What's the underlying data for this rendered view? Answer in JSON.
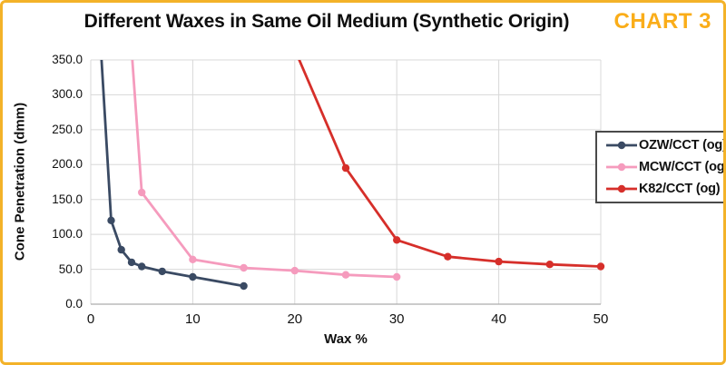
{
  "header": {
    "title": "Different Waxes in Same Oil Medium (Synthetic Origin)",
    "badge": "CHART 3",
    "badge_color": "#FAAD19",
    "frame_border_color": "#F3B229"
  },
  "chart_data": {
    "type": "line",
    "title": "Different Waxes in Same Oil Medium (Synthetic Origin)",
    "xlabel": "Wax %",
    "ylabel": "Cone Penetration (dmm)",
    "xlim": [
      0,
      50
    ],
    "ylim": [
      0,
      350
    ],
    "x_tick_labels": [
      "0",
      "10",
      "20",
      "30",
      "40",
      "50"
    ],
    "y_tick_labels": [
      "350.0",
      "300.0",
      "250.0",
      "200.0",
      "150.0",
      "100.0",
      "50.0",
      "0.0"
    ],
    "grid": true,
    "grid_color": "#D8D8D8",
    "axis_color": "#ACACAC",
    "legend_position": "right",
    "series": [
      {
        "name": "OZW/CCT (og)",
        "color": "#3A4A63",
        "points": [
          [
            1,
            365
          ],
          [
            2,
            120
          ],
          [
            3,
            78
          ],
          [
            4,
            60
          ],
          [
            5,
            54
          ],
          [
            7,
            47
          ],
          [
            10,
            39
          ],
          [
            15,
            26
          ]
        ]
      },
      {
        "name": "MCW/CCT (og)",
        "color": "#F59BBD",
        "points": [
          [
            4,
            365
          ],
          [
            5,
            160
          ],
          [
            10,
            64
          ],
          [
            15,
            52
          ],
          [
            20,
            48
          ],
          [
            25,
            42
          ],
          [
            30,
            39
          ]
        ]
      },
      {
        "name": "K82/CCT (og)",
        "color": "#D62F2A",
        "points": [
          [
            20,
            365
          ],
          [
            25,
            195
          ],
          [
            30,
            92
          ],
          [
            35,
            68
          ],
          [
            40,
            61
          ],
          [
            45,
            57
          ],
          [
            50,
            54
          ]
        ]
      }
    ],
    "note": "The first point of each series lies above the y-axis maximum; each line enters clipped from the top edge of the plot (off-scale values estimated)."
  }
}
